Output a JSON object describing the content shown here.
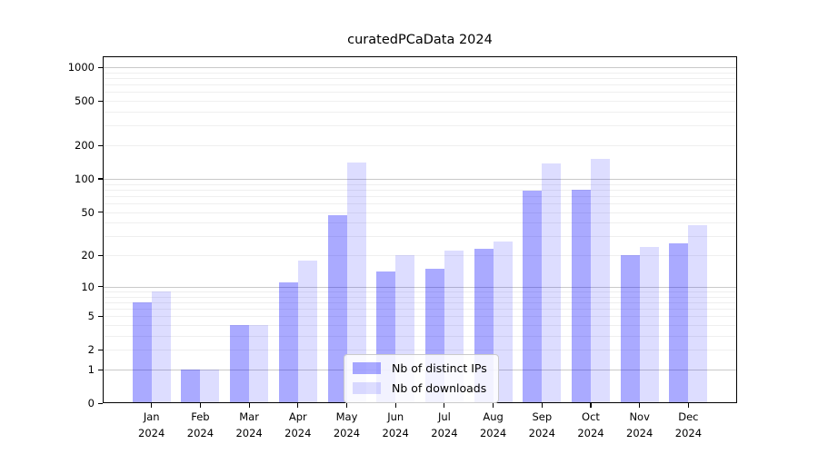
{
  "title": "curatedPCaData 2024",
  "chart_data": {
    "type": "bar",
    "title": "curatedPCaData 2024",
    "categories": [
      "Jan",
      "Feb",
      "Mar",
      "Apr",
      "May",
      "Jun",
      "Jul",
      "Aug",
      "Sep",
      "Oct",
      "Nov",
      "Dec"
    ],
    "year": "2024",
    "series": [
      {
        "name": "Nb of distinct IPs",
        "color": "rgba(0,0,255,0.335)",
        "values": [
          7,
          1,
          4,
          11,
          47,
          14,
          15,
          23,
          78,
          80,
          20,
          26
        ]
      },
      {
        "name": "Nb of downloads",
        "color": "rgba(0,0,255,0.135)",
        "values": [
          9,
          1,
          4,
          18,
          140,
          20,
          22,
          27,
          138,
          150,
          24,
          38
        ]
      }
    ],
    "xlabel": "",
    "ylabel": "",
    "yscale": "log1p",
    "ylim": [
      0,
      1150
    ],
    "yticks": [
      0,
      1,
      2,
      5,
      10,
      20,
      50,
      100,
      200,
      500,
      1000
    ],
    "major_gridlines": [
      1,
      10,
      100,
      1000
    ],
    "minor_gridlines": [
      2,
      3,
      4,
      5,
      6,
      7,
      8,
      9,
      20,
      30,
      40,
      50,
      60,
      70,
      80,
      90,
      200,
      300,
      400,
      500,
      600,
      700,
      800,
      900
    ],
    "grid": true,
    "legend_position": "bottom-center"
  },
  "colors": {
    "bar_distinct_ips": "rgba(0,0,255,0.335)",
    "bar_downloads": "rgba(0,0,255,0.135)",
    "gridline_major": "#c9c9c9",
    "gridline_minor": "#efefef",
    "axis": "#000000",
    "background": "#ffffff"
  }
}
